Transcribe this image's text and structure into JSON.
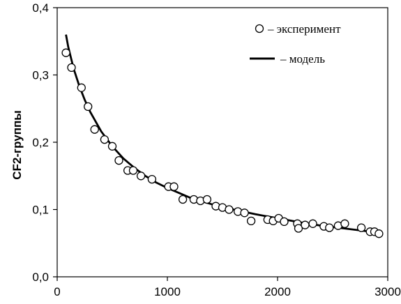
{
  "chart_data": {
    "type": "scatter",
    "title": "",
    "xlabel": "",
    "ylabel": "CF2-группы",
    "xlim": [
      0,
      3000
    ],
    "ylim": [
      0,
      0.4
    ],
    "x_ticks": [
      "0",
      "1000",
      "2000",
      "3000"
    ],
    "y_ticks": [
      "0,0",
      "0,1",
      "0,2",
      "0,3",
      "0,4"
    ],
    "x_tick_values": [
      0,
      1000,
      2000,
      3000
    ],
    "y_tick_values": [
      0,
      0.1,
      0.2,
      0.3,
      0.4
    ],
    "grid": false,
    "legend_position": "top-right",
    "series": [
      {
        "name": "– эксперимент",
        "kind": "markers",
        "marker": "open-circle",
        "color": "#000000",
        "x": [
          80,
          130,
          220,
          280,
          340,
          430,
          500,
          560,
          640,
          690,
          760,
          860,
          1010,
          1060,
          1140,
          1240,
          1300,
          1360,
          1440,
          1500,
          1560,
          1640,
          1700,
          1760,
          1910,
          1960,
          2010,
          2060,
          2180,
          2190,
          2250,
          2320,
          2420,
          2470,
          2550,
          2610,
          2760,
          2840,
          2880,
          2920
        ],
        "y": [
          0.333,
          0.311,
          0.281,
          0.253,
          0.219,
          0.204,
          0.194,
          0.173,
          0.158,
          0.158,
          0.15,
          0.145,
          0.134,
          0.134,
          0.115,
          0.115,
          0.113,
          0.115,
          0.105,
          0.103,
          0.1,
          0.097,
          0.095,
          0.083,
          0.085,
          0.083,
          0.087,
          0.082,
          0.079,
          0.072,
          0.077,
          0.079,
          0.075,
          0.073,
          0.076,
          0.079,
          0.073,
          0.067,
          0.067,
          0.064
        ]
      },
      {
        "name": "– модель",
        "kind": "line",
        "color": "#000000",
        "x": [
          80,
          100,
          150,
          200,
          250,
          300,
          400,
          500,
          600,
          700,
          800,
          900,
          1000,
          1200,
          1400,
          1600,
          1800,
          2000,
          2200,
          2400,
          2600,
          2800,
          2950
        ],
        "y": [
          0.36,
          0.342,
          0.309,
          0.284,
          0.263,
          0.245,
          0.216,
          0.194,
          0.176,
          0.162,
          0.15,
          0.14,
          0.132,
          0.118,
          0.108,
          0.1,
          0.093,
          0.087,
          0.081,
          0.076,
          0.072,
          0.068,
          0.065
        ]
      }
    ]
  }
}
